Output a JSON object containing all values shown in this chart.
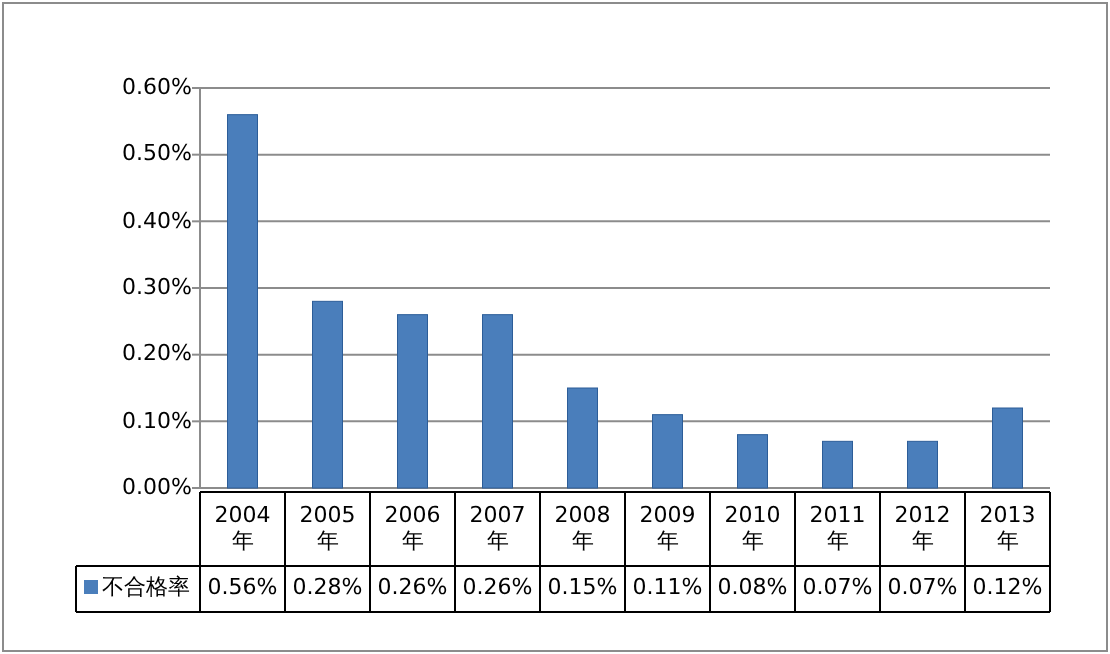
{
  "chart_data": {
    "type": "bar",
    "categories": [
      "2004年",
      "2005年",
      "2006年",
      "2007年",
      "2008年",
      "2009年",
      "2010年",
      "2011年",
      "2012年",
      "2013年"
    ],
    "series": [
      {
        "name": "不合格率",
        "color": "#4a7ebb",
        "values": [
          0.56,
          0.28,
          0.26,
          0.26,
          0.15,
          0.11,
          0.08,
          0.07,
          0.07,
          0.12
        ],
        "value_labels": [
          "0.56%",
          "0.28%",
          "0.26%",
          "0.26%",
          "0.15%",
          "0.11%",
          "0.08%",
          "0.07%",
          "0.07%",
          "0.12%"
        ]
      }
    ],
    "ylim": [
      0,
      0.6
    ],
    "yticks": [
      {
        "value": 0,
        "label": "0.00%"
      },
      {
        "value": 0.1,
        "label": "0.10%"
      },
      {
        "value": 0.2,
        "label": "0.20%"
      },
      {
        "value": 0.3,
        "label": "0.30%"
      },
      {
        "value": 0.4,
        "label": "0.40%"
      },
      {
        "value": 0.5,
        "label": "0.50%"
      },
      {
        "value": 0.6,
        "label": "0.60%"
      }
    ],
    "grid": "y",
    "legend": "bottom"
  }
}
